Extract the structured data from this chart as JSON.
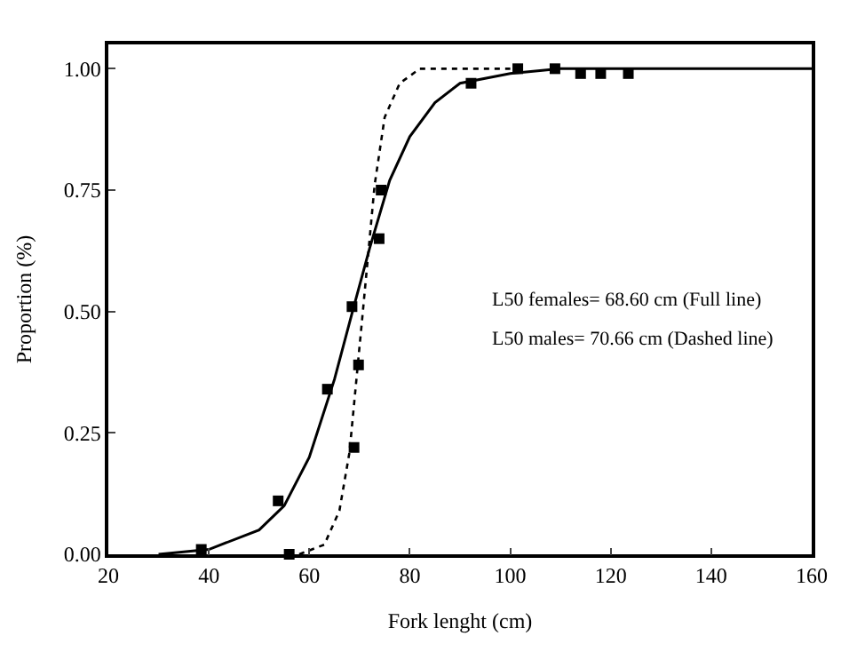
{
  "chart_data": {
    "type": "scatter",
    "xlabel": "Fork lenght (cm)",
    "ylabel": "Proportion (%)",
    "xlim": [
      20,
      160
    ],
    "xticks": [
      20,
      40,
      60,
      80,
      100,
      120,
      140,
      160
    ],
    "ylim": [
      0,
      1.05
    ],
    "yticks": [
      {
        "value": 0,
        "label": "0.00"
      },
      {
        "value": 0.25,
        "label": "0.25"
      },
      {
        "value": 0.5,
        "label": "0.50"
      },
      {
        "value": 0.75,
        "label": "0.75"
      },
      {
        "value": 1,
        "label": "1.00"
      }
    ],
    "series": [
      {
        "marker": "square",
        "color": "#000000",
        "x": [
          38.5,
          53.8,
          56,
          63.6,
          68.5,
          68.9,
          69.8,
          73.9,
          74.3,
          92.2,
          101.5,
          108.9,
          114,
          118,
          123.5
        ],
        "values": [
          0.01,
          0.11,
          0,
          0.34,
          0.51,
          0.22,
          0.39,
          0.65,
          0.75,
          0.97,
          1.0,
          1.0,
          0.99,
          0.99,
          0.99
        ]
      },
      {
        "type": "line",
        "line_style": "solid",
        "marker": "none",
        "color": "#000000",
        "x": [
          30,
          40,
          50,
          55,
          60,
          65,
          68.6,
          72,
          76,
          80,
          85,
          90,
          100,
          110,
          160
        ],
        "values": [
          0.0,
          0.01,
          0.05,
          0.1,
          0.2,
          0.36,
          0.5,
          0.63,
          0.77,
          0.86,
          0.93,
          0.97,
          0.99,
          1.0,
          1.0
        ]
      },
      {
        "type": "line",
        "line_style": "dotted",
        "marker": "none",
        "color": "#000000",
        "x": [
          58,
          63,
          66,
          68,
          70.66,
          73,
          75,
          78,
          82,
          100
        ],
        "values": [
          0.0,
          0.02,
          0.09,
          0.21,
          0.5,
          0.76,
          0.9,
          0.97,
          1.0,
          1.0
        ]
      }
    ],
    "annotations": [
      "L50 females= 68.60 cm (Full line)",
      "L50 males= 70.66 cm (Dashed line)"
    ]
  }
}
